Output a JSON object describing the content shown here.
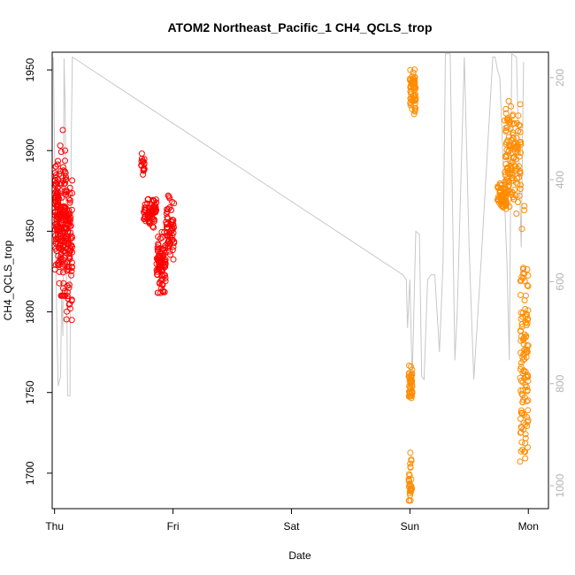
{
  "chart_data": {
    "type": "scatter",
    "title": "ATOM2 Northeast_Pacific_1 CH4_QCLS_trop",
    "xlabel": "Date",
    "ylabel": "CH4_QCLS_trop",
    "x_ticks": [
      "Thu",
      "Fri",
      "Sat",
      "Sun",
      "Mon"
    ],
    "x_range_days": [
      -0.02,
      4.17
    ],
    "y_ticks": [
      1700,
      1750,
      1800,
      1850,
      1900,
      1950
    ],
    "ylim": [
      1678,
      1961
    ],
    "y2_ticks": [
      200,
      400,
      600,
      800,
      1000
    ],
    "y2lim": [
      1045,
      150
    ],
    "grid": false,
    "colors": {
      "series1": "#ff0000",
      "series2": "#ff8c00",
      "secondary_line": "#c8c8c8"
    },
    "series": [
      {
        "color_key": "series1",
        "segments": [
          {
            "x_start": 0.0,
            "x_end": 0.04,
            "y_min": 1815,
            "y_max": 1898,
            "y_center": 1860,
            "n": 90
          },
          {
            "x_start": 0.04,
            "x_end": 0.1,
            "y_min": 1810,
            "y_max": 1927,
            "y_center": 1855,
            "n": 110
          },
          {
            "x_start": 0.1,
            "x_end": 0.15,
            "y_min": 1795,
            "y_max": 1905,
            "y_center": 1840,
            "n": 80
          },
          {
            "x_start": 0.73,
            "x_end": 0.76,
            "y_min": 1885,
            "y_max": 1900,
            "y_center": 1892,
            "n": 18
          },
          {
            "x_start": 0.75,
            "x_end": 0.86,
            "y_min": 1850,
            "y_max": 1873,
            "y_center": 1862,
            "n": 70
          },
          {
            "x_start": 0.86,
            "x_end": 0.94,
            "y_min": 1806,
            "y_max": 1855,
            "y_center": 1830,
            "n": 90
          },
          {
            "x_start": 0.94,
            "x_end": 1.01,
            "y_min": 1825,
            "y_max": 1878,
            "y_center": 1852,
            "n": 60
          }
        ]
      },
      {
        "color_key": "series2",
        "segments": [
          {
            "x_start": 2.99,
            "x_end": 3.02,
            "y_min": 1683,
            "y_max": 1716,
            "y_center": 1692,
            "n": 28
          },
          {
            "x_start": 2.99,
            "x_end": 3.02,
            "y_min": 1740,
            "y_max": 1773,
            "y_center": 1755,
            "n": 40
          },
          {
            "x_start": 3.0,
            "x_end": 3.05,
            "y_min": 1915,
            "y_max": 1955,
            "y_center": 1935,
            "n": 60
          },
          {
            "x_start": 3.74,
            "x_end": 3.82,
            "y_min": 1860,
            "y_max": 1883,
            "y_center": 1870,
            "n": 60
          },
          {
            "x_start": 3.8,
            "x_end": 3.94,
            "y_min": 1855,
            "y_max": 1945,
            "y_center": 1895,
            "n": 140
          },
          {
            "x_start": 3.93,
            "x_end": 4.0,
            "y_min": 1683,
            "y_max": 1880,
            "y_center": 1770,
            "n": 120
          }
        ]
      }
    ],
    "secondary_line": [
      [
        -0.01,
        1958
      ],
      [
        0.0,
        1900
      ],
      [
        0.01,
        1830
      ],
      [
        0.03,
        1754
      ],
      [
        0.05,
        1760
      ],
      [
        0.06,
        1810
      ],
      [
        0.07,
        1785
      ],
      [
        0.08,
        1957
      ],
      [
        0.09,
        1925
      ],
      [
        0.1,
        1830
      ],
      [
        0.11,
        1748
      ],
      [
        0.13,
        1748
      ],
      [
        0.14,
        1900
      ],
      [
        0.15,
        1958
      ],
      [
        2.94,
        1823
      ],
      [
        2.97,
        1820
      ],
      [
        2.98,
        1790
      ],
      [
        3.0,
        1820
      ],
      [
        3.02,
        1758
      ],
      [
        3.05,
        1850
      ],
      [
        3.08,
        1848
      ],
      [
        3.1,
        1760
      ],
      [
        3.12,
        1758
      ],
      [
        3.15,
        1820
      ],
      [
        3.18,
        1823
      ],
      [
        3.21,
        1823
      ],
      [
        3.25,
        1775
      ],
      [
        3.28,
        1830
      ],
      [
        3.3,
        1960
      ],
      [
        3.34,
        1960
      ],
      [
        3.38,
        1770
      ],
      [
        3.4,
        1800
      ],
      [
        3.46,
        1958
      ],
      [
        3.5,
        1840
      ],
      [
        3.54,
        1758
      ],
      [
        3.6,
        1830
      ],
      [
        3.7,
        1958
      ],
      [
        3.72,
        1958
      ],
      [
        3.74,
        1950
      ],
      [
        3.76,
        1945
      ],
      [
        3.82,
        1830
      ],
      [
        3.84,
        1770
      ],
      [
        3.86,
        1960
      ],
      [
        3.9,
        1958
      ],
      [
        3.94,
        1840
      ],
      [
        3.96,
        1955
      ]
    ]
  }
}
